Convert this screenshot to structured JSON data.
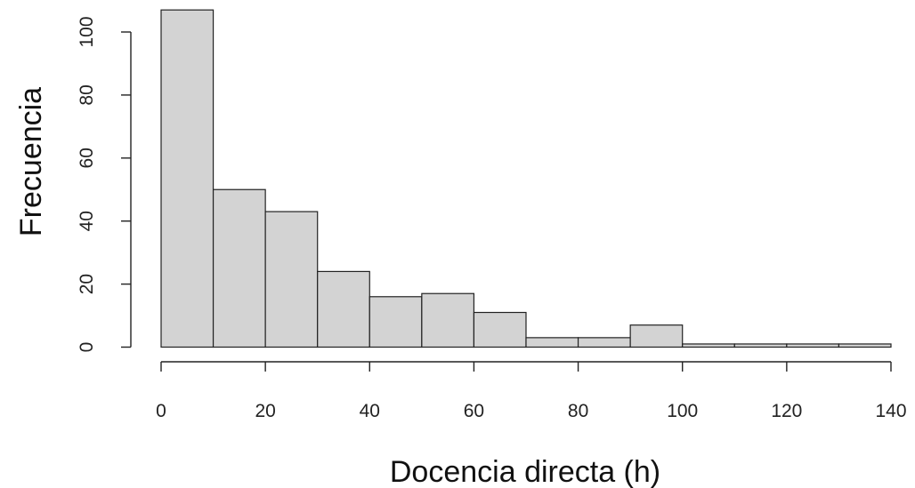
{
  "chart_data": {
    "type": "bar",
    "bins": [
      {
        "from": 0,
        "to": 10,
        "count": 107
      },
      {
        "from": 10,
        "to": 20,
        "count": 50
      },
      {
        "from": 20,
        "to": 30,
        "count": 43
      },
      {
        "from": 30,
        "to": 40,
        "count": 24
      },
      {
        "from": 40,
        "to": 50,
        "count": 16
      },
      {
        "from": 50,
        "to": 60,
        "count": 17
      },
      {
        "from": 60,
        "to": 70,
        "count": 11
      },
      {
        "from": 70,
        "to": 80,
        "count": 3
      },
      {
        "from": 80,
        "to": 90,
        "count": 3
      },
      {
        "from": 90,
        "to": 100,
        "count": 7
      },
      {
        "from": 100,
        "to": 110,
        "count": 1
      },
      {
        "from": 110,
        "to": 120,
        "count": 1
      },
      {
        "from": 120,
        "to": 130,
        "count": 1
      },
      {
        "from": 130,
        "to": 140,
        "count": 1
      }
    ],
    "xlabel": "Docencia directa (h)",
    "ylabel": "Frecuencia",
    "xlim": [
      0,
      140
    ],
    "ylim": [
      0,
      100
    ],
    "xticks": [
      0,
      20,
      40,
      60,
      80,
      100,
      120,
      140
    ],
    "yticks": [
      0,
      20,
      40,
      60,
      80,
      100
    ],
    "grid": false,
    "colors": {
      "bar_fill": "#d3d3d3",
      "bar_stroke": "#222222"
    }
  }
}
